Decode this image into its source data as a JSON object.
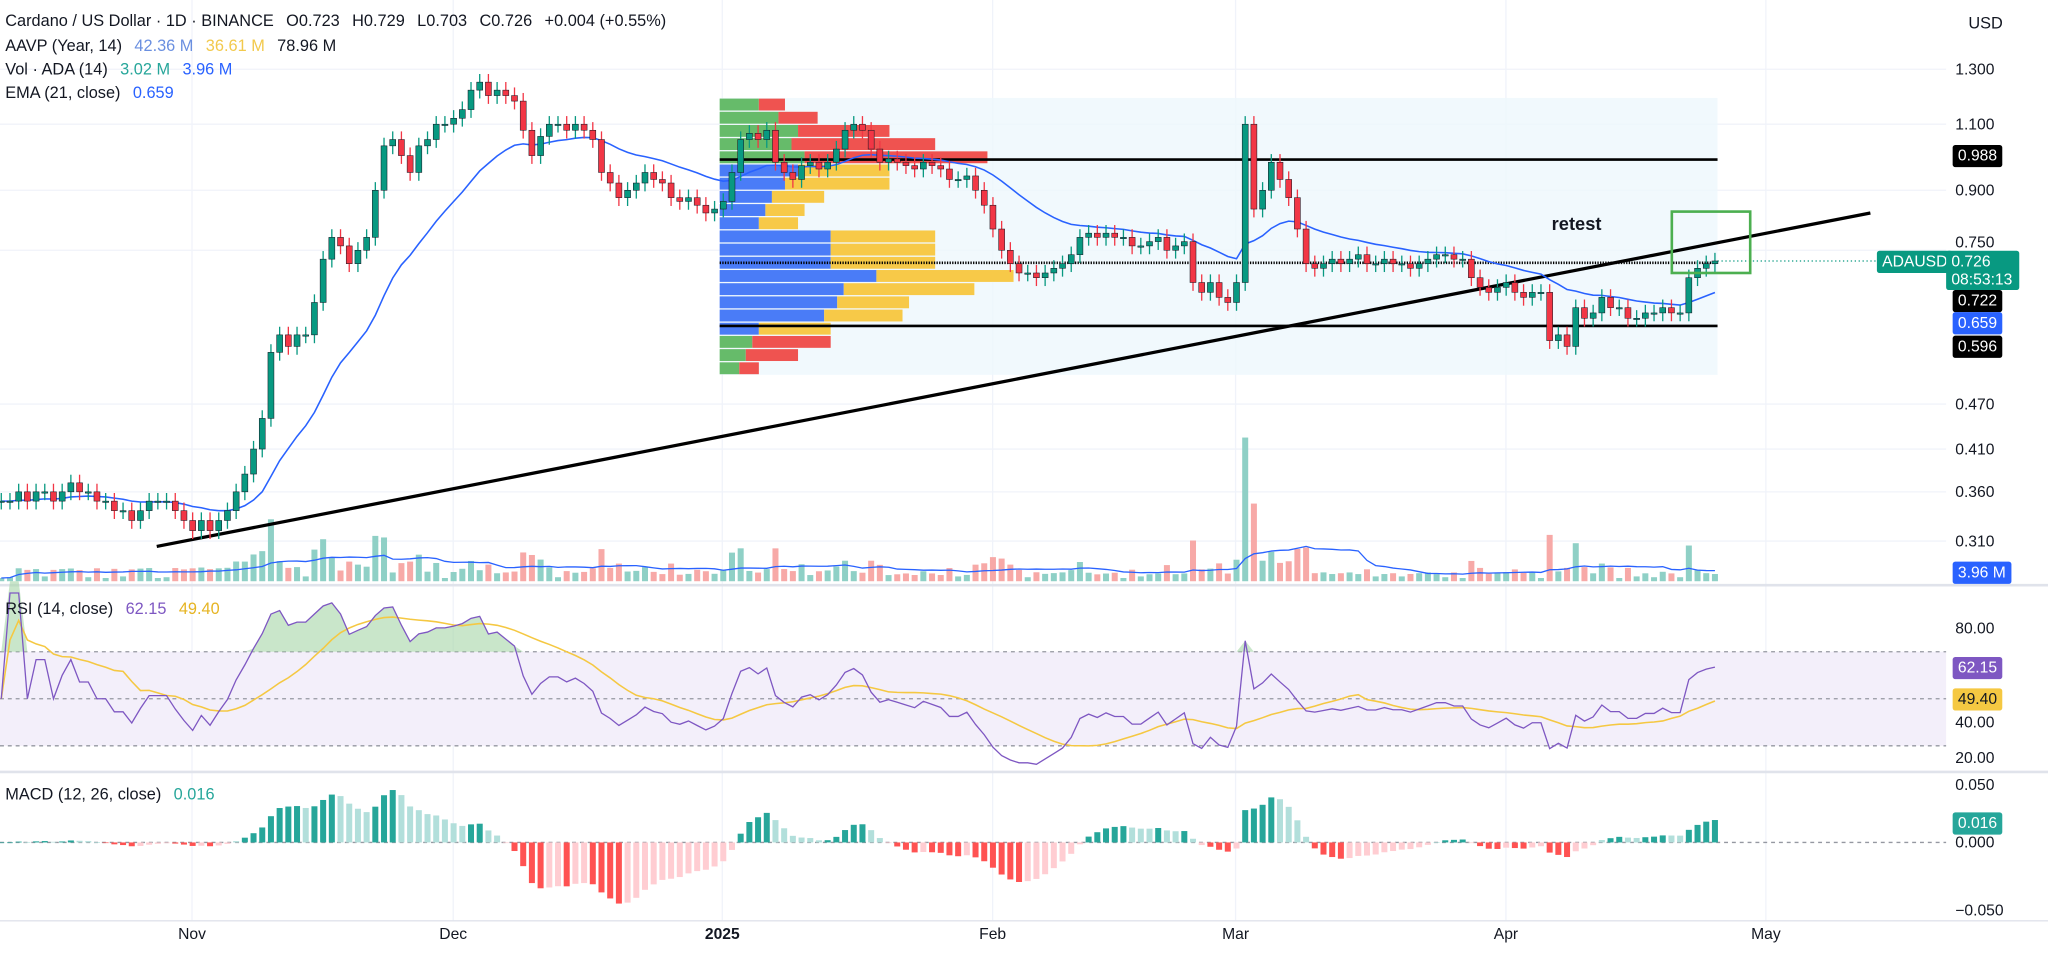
{
  "header": {
    "symbol": "Cardano / US Dollar · 1D · BINANCE",
    "open": "O0.723",
    "high": "H0.729",
    "low": "L0.703",
    "close": "C0.726",
    "change": "+0.004 (+0.55%)"
  },
  "legends": {
    "aavp": {
      "label": "AAVP (Year, 14)",
      "v1": "42.36 M",
      "v2": "36.61 M",
      "v3": "78.96 M"
    },
    "vol": {
      "label": "Vol · ADA (14)",
      "v1": "3.02 M",
      "v2": "3.96 M"
    },
    "ema": {
      "label": "EMA (21, close)",
      "v1": "0.659"
    },
    "rsi": {
      "label": "RSI (14, close)",
      "v1": "62.15",
      "v2": "49.40"
    },
    "macd": {
      "label": "MACD (12, 26, close)",
      "v1": "0.016"
    }
  },
  "axis": {
    "currency": "USD",
    "price_ticks": [
      "1.300",
      "1.100",
      "0.900",
      "0.750",
      "0.470",
      "0.410",
      "0.360",
      "0.310"
    ],
    "rsi_ticks": [
      "80.00",
      "40.00",
      "20.00"
    ],
    "macd_ticks": [
      "0.050",
      "0.000",
      "−0.050"
    ],
    "time_ticks": [
      "Nov",
      "Dec",
      "2025",
      "Feb",
      "Mar",
      "Apr",
      "May"
    ]
  },
  "tags": {
    "level_high": "0.988",
    "symbol": "ADAUSD",
    "last_price": "0.726",
    "countdown": "08:53:13",
    "level_mid": "0.722",
    "ema": "0.659",
    "level_low": "0.596",
    "volume": "3.96 M",
    "rsi": "62.15",
    "rsi_ma": "49.40",
    "macd": "0.016"
  },
  "annotation": "retest",
  "colors": {
    "up": "#089981",
    "down": "#f23645",
    "ema": "#2962ff",
    "rsi": "#7e57c2",
    "rsi_ma": "#f5c842",
    "profile_up": "#66bb6a",
    "profile_down": "#ef5350",
    "profile_va_up": "#4a7cf7",
    "profile_va_down": "#f7c948",
    "box": "#4caf50"
  },
  "chart_data": {
    "type": "candlestick",
    "scale": "log",
    "ylim": [
      0.29,
      1.35
    ],
    "grid": true,
    "closes": [
      0.35,
      0.35,
      0.36,
      0.35,
      0.36,
      0.36,
      0.35,
      0.36,
      0.37,
      0.36,
      0.36,
      0.35,
      0.35,
      0.34,
      0.34,
      0.33,
      0.34,
      0.35,
      0.35,
      0.35,
      0.34,
      0.33,
      0.32,
      0.33,
      0.32,
      0.33,
      0.34,
      0.36,
      0.38,
      0.41,
      0.45,
      0.55,
      0.58,
      0.56,
      0.58,
      0.58,
      0.64,
      0.73,
      0.78,
      0.76,
      0.72,
      0.75,
      0.78,
      0.9,
      1.03,
      1.05,
      1.0,
      0.95,
      1.03,
      1.05,
      1.1,
      1.1,
      1.12,
      1.15,
      1.22,
      1.25,
      1.2,
      1.22,
      1.2,
      1.18,
      1.08,
      1.0,
      1.06,
      1.1,
      1.1,
      1.08,
      1.1,
      1.08,
      1.05,
      0.95,
      0.92,
      0.88,
      0.9,
      0.92,
      0.95,
      0.93,
      0.92,
      0.88,
      0.87,
      0.88,
      0.86,
      0.84,
      0.85,
      0.87,
      0.95,
      1.05,
      1.07,
      1.05,
      1.08,
      0.98,
      0.95,
      0.93,
      0.97,
      0.98,
      0.96,
      0.98,
      1.02,
      1.08,
      1.1,
      1.08,
      1.02,
      0.98,
      0.99,
      0.98,
      0.97,
      0.96,
      0.98,
      0.97,
      0.96,
      0.93,
      0.93,
      0.94,
      0.9,
      0.86,
      0.8,
      0.75,
      0.72,
      0.7,
      0.7,
      0.69,
      0.7,
      0.71,
      0.72,
      0.74,
      0.78,
      0.79,
      0.78,
      0.79,
      0.78,
      0.78,
      0.76,
      0.76,
      0.77,
      0.78,
      0.75,
      0.76,
      0.77,
      0.68,
      0.66,
      0.68,
      0.65,
      0.64,
      0.68,
      1.1,
      0.85,
      0.9,
      0.98,
      0.93,
      0.88,
      0.8,
      0.72,
      0.71,
      0.72,
      0.73,
      0.72,
      0.73,
      0.74,
      0.72,
      0.72,
      0.73,
      0.72,
      0.72,
      0.71,
      0.72,
      0.73,
      0.74,
      0.74,
      0.73,
      0.73,
      0.69,
      0.67,
      0.66,
      0.67,
      0.68,
      0.66,
      0.65,
      0.66,
      0.66,
      0.57,
      0.58,
      0.56,
      0.63,
      0.61,
      0.62,
      0.65,
      0.63,
      0.63,
      0.61,
      0.61,
      0.62,
      0.62,
      0.63,
      0.62,
      0.62,
      0.69,
      0.71,
      0.72,
      0.726
    ],
    "levels": [
      0.988,
      0.722,
      0.596
    ],
    "trendline": {
      "from_price": 0.305,
      "to_price": 0.84
    },
    "volume_profile": {
      "rows": [
        [
          30,
          20
        ],
        [
          45,
          30
        ],
        [
          60,
          70
        ],
        [
          55,
          110
        ],
        [
          65,
          140
        ],
        [
          60,
          70
        ],
        [
          50,
          80
        ],
        [
          40,
          40
        ],
        [
          35,
          30
        ],
        [
          30,
          30
        ],
        [
          85,
          80
        ],
        [
          85,
          80
        ],
        [
          85,
          80
        ],
        [
          120,
          105
        ],
        [
          95,
          100
        ],
        [
          90,
          55
        ],
        [
          80,
          60
        ],
        [
          30,
          55
        ],
        [
          25,
          60
        ],
        [
          20,
          40
        ],
        [
          15,
          15
        ]
      ],
      "value_area_rows": [
        5,
        17
      ]
    }
  }
}
